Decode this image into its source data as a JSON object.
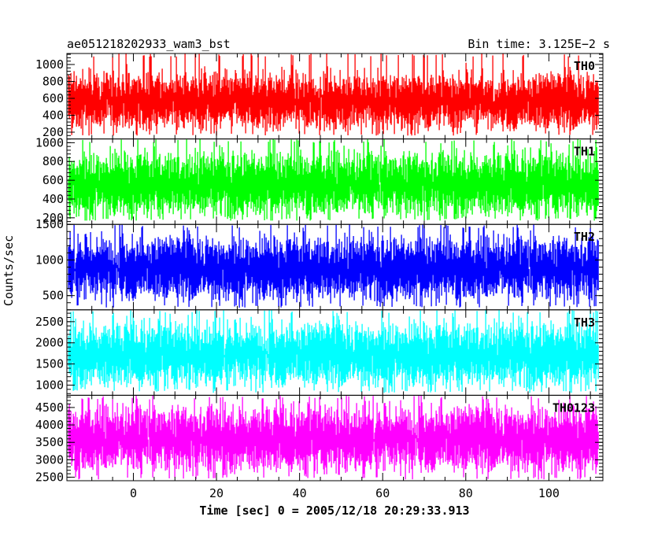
{
  "chart_data": {
    "type": "line",
    "title": "ae051218202933_wam3_bst",
    "bin_time": "Bin time: 3.125E−2 s",
    "ylabel": "Counts/sec",
    "xlabel": "Time [sec] 0 = 2005/12/18 20:29:33.913",
    "xlim": [
      -16,
      113
    ],
    "x_data_range": [
      -15.6,
      112.0
    ],
    "x_ticks": [
      0,
      20,
      40,
      60,
      80,
      100
    ],
    "x_tick_labels": [
      "0",
      "20",
      "40",
      "60",
      "80",
      "100"
    ],
    "panels": [
      {
        "name": "TH0",
        "color": "#ff0000",
        "ylim": [
          120,
          1130
        ],
        "yticks": [
          200,
          400,
          600,
          800,
          1000
        ],
        "ytick_labels": [
          "200",
          "400",
          "600",
          "800",
          "1000"
        ],
        "mean": 560,
        "spread": 130,
        "low": 160,
        "high": 1130
      },
      {
        "name": "TH1",
        "color": "#00ff00",
        "ylim": [
          130,
          1040
        ],
        "yticks": [
          200,
          400,
          600,
          800,
          1000
        ],
        "ytick_labels": [
          "200",
          "400",
          "600",
          "800",
          "1000"
        ],
        "mean": 560,
        "spread": 130,
        "low": 170,
        "high": 1040
      },
      {
        "name": "TH2",
        "color": "#0000ff",
        "ylim": [
          300,
          1500
        ],
        "yticks": [
          500,
          1000,
          1500
        ],
        "ytick_labels": [
          "500",
          "1000",
          "1500"
        ],
        "mean": 880,
        "spread": 170,
        "low": 330,
        "high": 1500
      },
      {
        "name": "TH3",
        "color": "#00ffff",
        "ylim": [
          760,
          2780
        ],
        "yticks": [
          1000,
          1500,
          2000,
          2500
        ],
        "ytick_labels": [
          "1000",
          "1500",
          "2000",
          "2500"
        ],
        "mean": 1720,
        "spread": 290,
        "low": 820,
        "high": 2780
      },
      {
        "name": "TH0123",
        "color": "#ff00ff",
        "ylim": [
          2400,
          4850
        ],
        "yticks": [
          2500,
          3000,
          3500,
          4000,
          4500
        ],
        "ytick_labels": [
          "2500",
          "3000",
          "3500",
          "4000",
          "4500"
        ],
        "mean": 3600,
        "spread": 360,
        "low": 2430,
        "high": 4850
      }
    ]
  }
}
